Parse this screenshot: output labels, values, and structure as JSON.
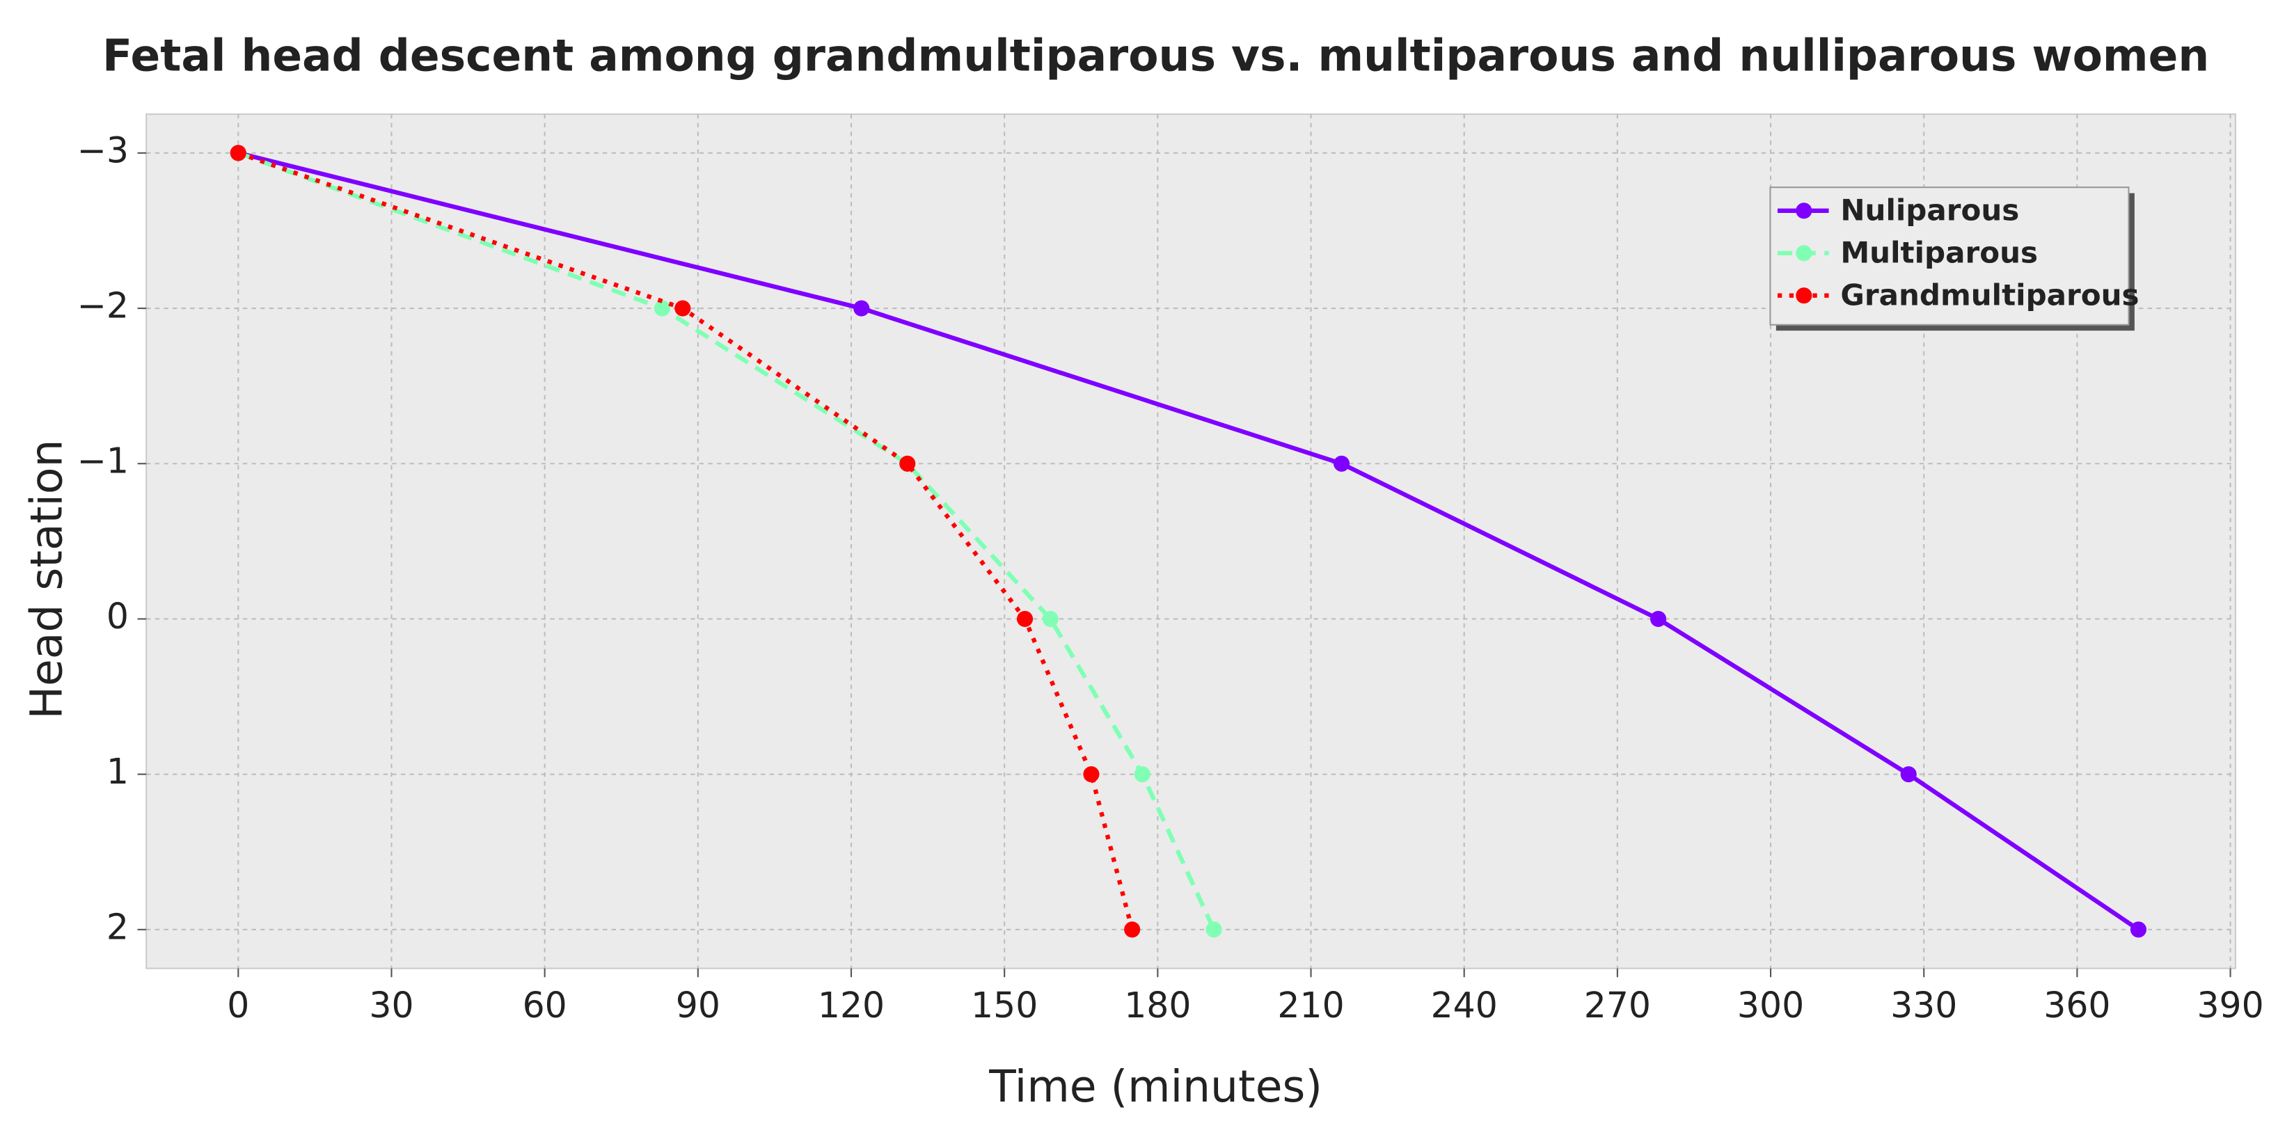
{
  "chart_data": {
    "type": "line",
    "title": "Fetal head descent among grandmultiparous vs. multiparous and nulliparous women",
    "xlabel": "Time (minutes)",
    "ylabel": "Head station",
    "xlim": [
      -18,
      391
    ],
    "xticks": [
      0,
      30,
      60,
      90,
      120,
      150,
      180,
      210,
      240,
      270,
      300,
      330,
      360,
      390
    ],
    "ylim": [
      2.25,
      -3.25
    ],
    "yticks": [
      {
        "value": -3,
        "label": "−3"
      },
      {
        "value": -2,
        "label": "−2"
      },
      {
        "value": -1,
        "label": "−1"
      },
      0,
      1,
      2
    ],
    "grid": true,
    "legend": "upper right",
    "series": [
      {
        "name": "Nuliparous",
        "color": "#7f00ff",
        "linestyle": "solid",
        "x": [
          0,
          122,
          216,
          278,
          327,
          372
        ],
        "values": [
          -3,
          -2,
          -1,
          0,
          1,
          2
        ]
      },
      {
        "name": "Multiparous",
        "color": "#80ffb4",
        "linestyle": "dashed",
        "x": [
          0,
          83,
          131,
          159,
          177,
          191
        ],
        "values": [
          -3,
          -2,
          -1,
          0,
          1,
          2
        ]
      },
      {
        "name": "Grandmultiparous",
        "color": "#ff0000",
        "linestyle": "dotted",
        "x": [
          0,
          87,
          131,
          154,
          167,
          175
        ],
        "values": [
          -3,
          -2,
          -1,
          0,
          1,
          2
        ]
      }
    ]
  }
}
